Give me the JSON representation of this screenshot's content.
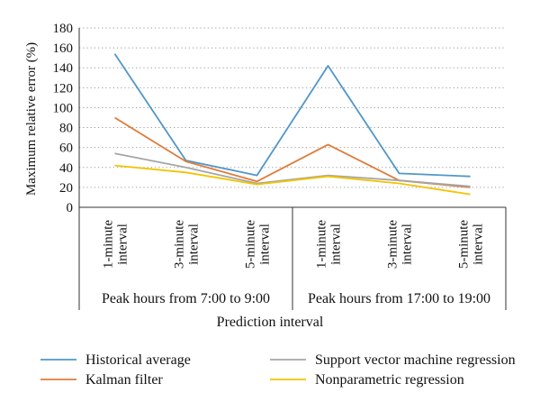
{
  "chart_data": {
    "type": "line",
    "ylabel": "Maximum relative error (%)",
    "xlabel": "Prediction interval",
    "ylim": [
      0,
      180
    ],
    "yticks": [
      0,
      20,
      40,
      60,
      80,
      100,
      120,
      140,
      160,
      180
    ],
    "grid": "horizontal dotted",
    "categories": [
      "1-minute interval",
      "3-minute interval",
      "5-minute interval",
      "1-minute interval",
      "3-minute interval",
      "5-minute interval"
    ],
    "category_lines": [
      [
        "1-minute",
        "interval"
      ],
      [
        "3-minute",
        "interval"
      ],
      [
        "5-minute",
        "interval"
      ],
      [
        "1-minute",
        "interval"
      ],
      [
        "3-minute",
        "interval"
      ],
      [
        "5-minute",
        "interval"
      ]
    ],
    "groups": [
      {
        "label": "Peak hours from 7:00 to 9:00",
        "span": 3
      },
      {
        "label": "Peak hours from 17:00 to 19:00",
        "span": 3
      }
    ],
    "series": [
      {
        "name": "Historical average",
        "color": "#4f97c9",
        "values": [
          154,
          47,
          32,
          142,
          34,
          31
        ]
      },
      {
        "name": "Kalman filter",
        "color": "#e07b39",
        "values": [
          90,
          46,
          26,
          63,
          27,
          20
        ]
      },
      {
        "name": "Support vector machine regression",
        "color": "#a6a6a6",
        "values": [
          54,
          40,
          24,
          32,
          27,
          21
        ]
      },
      {
        "name": "Nonparametric regression",
        "color": "#f2c400",
        "values": [
          42,
          35,
          23,
          31,
          24,
          13
        ]
      }
    ],
    "legend_position": "bottom"
  }
}
